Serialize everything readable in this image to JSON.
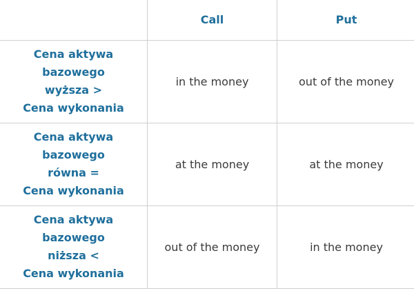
{
  "table": {
    "columns": [
      "Call",
      "Put"
    ],
    "rows": [
      {
        "header": [
          "Cena aktywa",
          "bazowego",
          "wyższa >",
          "Cena wykonania"
        ],
        "cells": [
          "in the money",
          "out of the money"
        ]
      },
      {
        "header": [
          "Cena aktywa",
          "bazowego",
          "równa =",
          "Cena wykonania"
        ],
        "cells": [
          "at the money",
          "at the money"
        ]
      },
      {
        "header": [
          "Cena aktywa",
          "bazowego",
          "niższa <",
          "Cena wykonania"
        ],
        "cells": [
          "out of the money",
          "in the money"
        ]
      }
    ]
  }
}
